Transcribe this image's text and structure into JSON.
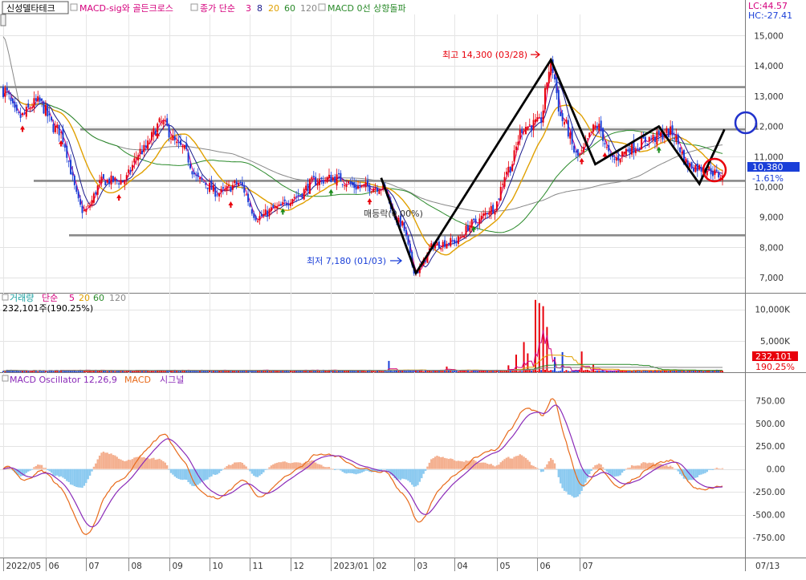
{
  "header": {
    "stock_name": "신성델타테크",
    "ind1": "MACD-sig와 골든크로스",
    "ind2_prefix": "종가 단순",
    "ma_periods": [
      "3",
      "8",
      "20",
      "60",
      "120"
    ],
    "ind3": "MACD 0선 상향돌파",
    "lc": "LC:44.57",
    "hc": "HC:-27.41"
  },
  "volume_header": {
    "title": "거래량",
    "ma_label": "단순",
    "ma_periods": [
      "5",
      "20",
      "60",
      "120"
    ],
    "value": "232,101주(190.25%)"
  },
  "macd_header": {
    "title": "MACD Oscillator 12,26,9",
    "macd": "MACD",
    "signal": "시그널"
  },
  "annotations": {
    "high": "최고 14,300 (03/28)",
    "low": "최저 7,180 (01/03)",
    "rate": "매등락(0.00%)"
  },
  "price_badge": {
    "value": "10,380",
    "pct": "-1.61%"
  },
  "volume_badge": {
    "value": "232,101",
    "pct": "190.25%"
  },
  "colors": {
    "up": "#e8000b",
    "down": "#1a3fd8",
    "ma3": "#d5007d",
    "ma8": "#1a1a8c",
    "ma20": "#e0a000",
    "ma60": "#2a8a2a",
    "ma120": "#888888",
    "macd": "#e86a1a",
    "signal": "#8a2ab8",
    "osc_pos": "#f4b090",
    "osc_neg": "#8ccaf0",
    "badge_blue": "#1a3fd8",
    "badge_red": "#e8000b"
  },
  "chart_data": [
    {
      "type": "candlestick",
      "name": "price",
      "y_ticks": [
        "15,000",
        "14,000",
        "13,000",
        "12,000",
        "11,000",
        "10,000",
        "9,000",
        "8,000",
        "7,000"
      ],
      "ylim": [
        6500,
        15700
      ],
      "x_ticks": [
        "2022/05",
        "06",
        "07",
        "08",
        "09",
        "10",
        "11",
        "12",
        "2023/01",
        "02",
        "03",
        "04",
        "05",
        "06",
        "07",
        "07/13"
      ],
      "close_keyframes": [
        {
          "t": 0,
          "v": 13200
        },
        {
          "t": 8,
          "v": 12300
        },
        {
          "t": 18,
          "v": 12800
        },
        {
          "t": 28,
          "v": 11900
        },
        {
          "t": 42,
          "v": 9200
        },
        {
          "t": 52,
          "v": 10200
        },
        {
          "t": 62,
          "v": 10200
        },
        {
          "t": 72,
          "v": 11200
        },
        {
          "t": 82,
          "v": 12100
        },
        {
          "t": 92,
          "v": 11300
        },
        {
          "t": 102,
          "v": 10200
        },
        {
          "t": 112,
          "v": 9800
        },
        {
          "t": 122,
          "v": 10100
        },
        {
          "t": 132,
          "v": 9000
        },
        {
          "t": 142,
          "v": 9300
        },
        {
          "t": 152,
          "v": 9700
        },
        {
          "t": 162,
          "v": 10200
        },
        {
          "t": 172,
          "v": 10300
        },
        {
          "t": 184,
          "v": 10000
        },
        {
          "t": 196,
          "v": 10000
        },
        {
          "t": 206,
          "v": 8800
        },
        {
          "t": 214,
          "v": 7200
        },
        {
          "t": 224,
          "v": 8100
        },
        {
          "t": 234,
          "v": 8200
        },
        {
          "t": 244,
          "v": 8800
        },
        {
          "t": 254,
          "v": 9300
        },
        {
          "t": 262,
          "v": 10600
        },
        {
          "t": 270,
          "v": 12000
        },
        {
          "t": 278,
          "v": 12100
        },
        {
          "t": 284,
          "v": 14000
        },
        {
          "t": 290,
          "v": 12200
        },
        {
          "t": 298,
          "v": 11000
        },
        {
          "t": 308,
          "v": 12000
        },
        {
          "t": 316,
          "v": 10900
        },
        {
          "t": 326,
          "v": 11300
        },
        {
          "t": 336,
          "v": 11600
        },
        {
          "t": 346,
          "v": 11800
        },
        {
          "t": 356,
          "v": 10700
        },
        {
          "t": 364,
          "v": 10600
        },
        {
          "t": 372,
          "v": 10380
        }
      ],
      "high_label": "최고 14,300 (03/28)",
      "low_label": "최저 7,180 (01/03)",
      "horizontal_levels": [
        13300,
        11900,
        10200,
        8400
      ]
    },
    {
      "type": "bar",
      "name": "volume",
      "y_ticks": [
        "10,000K",
        "5,000K"
      ],
      "ylim": [
        0,
        12500000
      ],
      "spikes": [
        {
          "t": 200,
          "v": 1800000
        },
        {
          "t": 230,
          "v": 900000
        },
        {
          "t": 262,
          "v": 1100000
        },
        {
          "t": 266,
          "v": 2800000
        },
        {
          "t": 270,
          "v": 4800000
        },
        {
          "t": 272,
          "v": 3000000
        },
        {
          "t": 276,
          "v": 11500000
        },
        {
          "t": 278,
          "v": 11000000
        },
        {
          "t": 280,
          "v": 10500000
        },
        {
          "t": 282,
          "v": 7200000
        },
        {
          "t": 286,
          "v": 2400000
        },
        {
          "t": 290,
          "v": 3200000
        },
        {
          "t": 300,
          "v": 3300000
        },
        {
          "t": 306,
          "v": 1200000
        }
      ],
      "last_value": 232101,
      "last_ratio": "190.25%"
    },
    {
      "type": "line",
      "name": "macd_oscillator",
      "y_ticks": [
        "750.00",
        "500.00",
        "250.00",
        "0.00",
        "-250.00",
        "-500.00",
        "-750.00"
      ],
      "ylim": [
        -970,
        920
      ]
    }
  ]
}
